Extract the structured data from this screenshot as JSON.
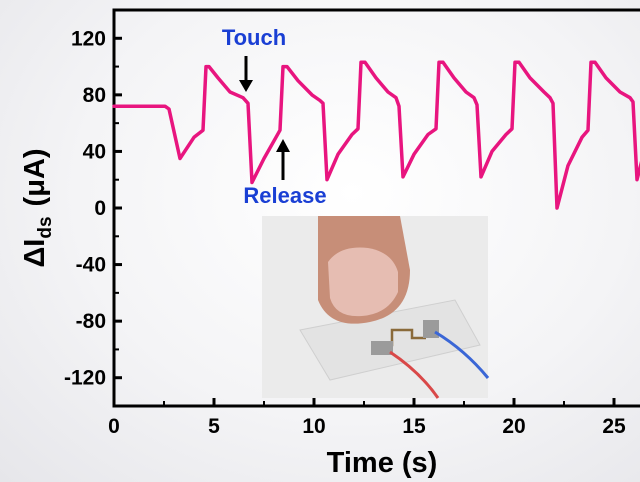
{
  "chart_data": {
    "type": "line",
    "xlabel": "Time (s)",
    "ylabel": {
      "delta": "Δ",
      "main": "I",
      "sub": "ds",
      "unit": "(μA)"
    },
    "xlim": [
      0,
      27
    ],
    "ylim": [
      -140,
      140
    ],
    "xticks": [
      0,
      5,
      10,
      15,
      20,
      25
    ],
    "yticks": [
      -120,
      -80,
      -40,
      0,
      40,
      80,
      120
    ],
    "grid": false,
    "series": [
      {
        "color": "#e8157f",
        "x": [
          0,
          2.55,
          2.75,
          3.3,
          4.0,
          4.45,
          4.6,
          4.75,
          5.2,
          5.8,
          6.45,
          6.7,
          6.9,
          7.5,
          8.1,
          8.3,
          8.45,
          8.65,
          9.2,
          9.9,
          10.3,
          10.45,
          10.65,
          11.2,
          11.9,
          12.2,
          12.35,
          12.55,
          13.1,
          13.7,
          14.1,
          14.25,
          14.45,
          15.0,
          15.7,
          16.1,
          16.25,
          16.45,
          17.0,
          17.6,
          18.0,
          18.15,
          18.35,
          18.9,
          19.6,
          19.9,
          20.05,
          20.25,
          20.8,
          21.5,
          21.8,
          21.95,
          22.15,
          22.7,
          23.4,
          23.7,
          23.85,
          24.05,
          24.6,
          25.3,
          25.8,
          25.95,
          26.15,
          26.6,
          27.0
        ],
        "y": [
          72,
          72,
          70,
          35,
          50,
          55,
          100,
          100,
          92,
          82,
          78,
          74,
          18,
          35,
          50,
          55,
          100,
          100,
          90,
          80,
          76,
          74,
          20,
          38,
          52,
          56,
          103,
          103,
          92,
          82,
          78,
          72,
          22,
          38,
          52,
          56,
          103,
          103,
          92,
          82,
          78,
          73,
          22,
          40,
          52,
          56,
          103,
          103,
          92,
          82,
          78,
          74,
          0,
          30,
          50,
          55,
          103,
          103,
          92,
          82,
          78,
          75,
          20,
          45,
          52
        ]
      }
    ],
    "annotations": [
      {
        "text": "Touch",
        "color": "#1a3fd4",
        "arrow": "down",
        "x": 6.6
      },
      {
        "text": "Release",
        "color": "#1a3fd4",
        "arrow": "up",
        "x": 8.45
      }
    ]
  }
}
